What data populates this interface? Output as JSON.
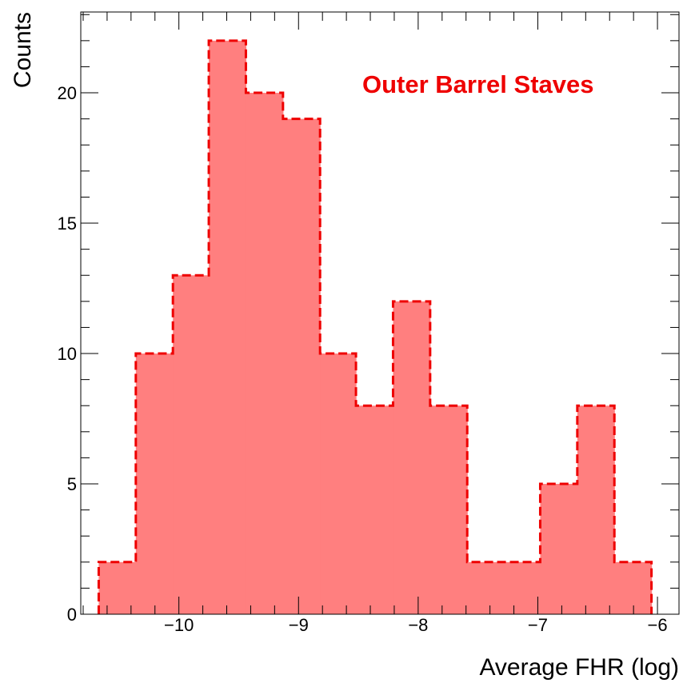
{
  "chart_data": {
    "type": "bar",
    "histogram": true,
    "xlabel": "Average FHR (log)",
    "ylabel": "Counts",
    "annotation": "Outer Barrel Staves",
    "xlim": [
      -10.82,
      -5.82
    ],
    "ylim": [
      0,
      23.1
    ],
    "xticks": [
      -10,
      -9,
      -8,
      -7,
      -6
    ],
    "xtick_labels": [
      "−10",
      "−9",
      "−8",
      "−7",
      "−6"
    ],
    "yticks": [
      0,
      5,
      10,
      15,
      20
    ],
    "ytick_labels": [
      "0",
      "5",
      "10",
      "15",
      "20"
    ],
    "bin_edges": [
      -10.67,
      -10.36,
      -10.05,
      -9.75,
      -9.44,
      -9.13,
      -8.82,
      -8.52,
      -8.21,
      -7.9,
      -7.59,
      -7.29,
      -6.98,
      -6.67,
      -6.36,
      -6.05
    ],
    "values": [
      2,
      10,
      13,
      22,
      20,
      19,
      10,
      8,
      12,
      8,
      2,
      2,
      5,
      8,
      2
    ],
    "colors": {
      "fill": "#ff7f7f",
      "line": "#ee0000",
      "annotation": "#ee0000"
    },
    "grid": false,
    "legend": "none"
  }
}
